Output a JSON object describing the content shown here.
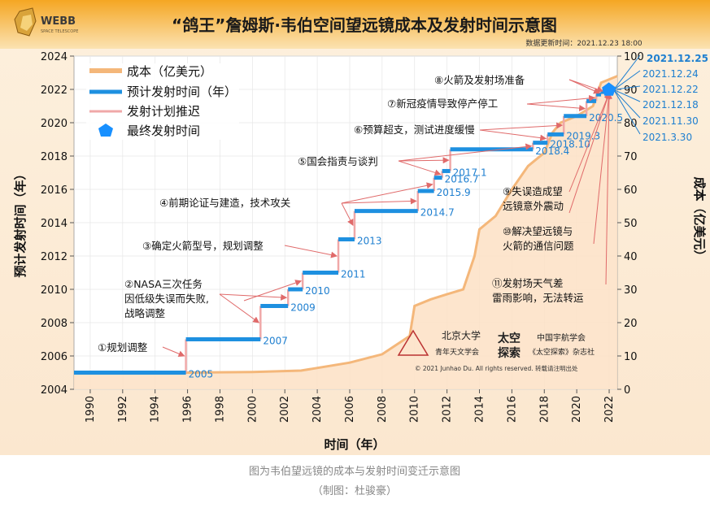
{
  "header": {
    "logo_text": "WEBB",
    "title": "“鸽王”詹姆斯·韦伯空间望远镜成本及发射时间示意图",
    "update_time": "数据更新时间：2021.12.23 18:00"
  },
  "caption": {
    "line1": "图为韦伯望远镜的成本与发射时间变迁示意图",
    "line2": "（制图：杜骏豪）"
  },
  "credits": {
    "org1_line1": "北京大学",
    "org1_line2": "青年天文学会",
    "org2_short_1": "太空",
    "org2_short_2": "探索",
    "org2_line1": "中国宇航学会",
    "org2_line2": "《太空探索》杂志社",
    "copyright": "© 2021 Junhao Du. All rights reserved. 转载请注明出处"
  },
  "legend": [
    {
      "label": "成本（亿美元）",
      "kind": "cost"
    },
    {
      "label": "预计发射时间（年）",
      "kind": "plan"
    },
    {
      "label": "发射计划推迟",
      "kind": "delay"
    },
    {
      "label": "最终发射时间",
      "kind": "final"
    }
  ],
  "colors": {
    "cost_line": "#f4b77a",
    "cost_fill": "#fde5cc",
    "plan": "#1e90e0",
    "delay": "#f0a8a8",
    "arrow": "#e07070",
    "final": "#1890ff",
    "header_bg": "#f2b035"
  },
  "chart_data": {
    "type": "line",
    "xlabel": "时间（年）",
    "ylabel_left": "预计发射时间（年）",
    "ylabel_right": "成本（亿美元）",
    "x_ticks": [
      1990,
      1992,
      1994,
      1996,
      1998,
      2000,
      2002,
      2004,
      2006,
      2008,
      2010,
      2012,
      2014,
      2016,
      2018,
      2020,
      2022
    ],
    "y_left_ticks": [
      2004,
      2006,
      2008,
      2010,
      2012,
      2014,
      2016,
      2018,
      2020,
      2022,
      2024
    ],
    "y_right_ticks": [
      0,
      10,
      20,
      30,
      40,
      50,
      60,
      70,
      80,
      90,
      100
    ],
    "xlim": [
      1989,
      2022.5
    ],
    "ylim_left": [
      2004,
      2024
    ],
    "ylim_right": [
      0,
      100
    ],
    "cost_series": {
      "name": "成本（亿美元）",
      "points": [
        [
          1989,
          5
        ],
        [
          1996,
          5
        ],
        [
          2000,
          5.2
        ],
        [
          2003,
          5.6
        ],
        [
          2006,
          8
        ],
        [
          2008,
          10.5
        ],
        [
          2009.7,
          16
        ],
        [
          2010,
          25
        ],
        [
          2011,
          27
        ],
        [
          2012,
          28.5
        ],
        [
          2013,
          30
        ],
        [
          2013.7,
          40
        ],
        [
          2014,
          48
        ],
        [
          2015,
          52
        ],
        [
          2016,
          60
        ],
        [
          2017,
          67
        ],
        [
          2018,
          71
        ],
        [
          2018.5,
          77
        ],
        [
          2019,
          80
        ],
        [
          2020,
          82
        ],
        [
          2021,
          85
        ],
        [
          2021.5,
          92
        ],
        [
          2022.5,
          94
        ]
      ]
    },
    "plan_segments": [
      {
        "x0": 1989,
        "x1": 1995.9,
        "y": 2005,
        "label": "2005"
      },
      {
        "x0": 1995.9,
        "x1": 2000.5,
        "y": 2007,
        "label": "2007"
      },
      {
        "x0": 2000.5,
        "x1": 2002.2,
        "y": 2009,
        "label": "2009"
      },
      {
        "x0": 2002.2,
        "x1": 2003.1,
        "y": 2010,
        "label": "2010"
      },
      {
        "x0": 2003.1,
        "x1": 2005.3,
        "y": 2011,
        "label": "2011"
      },
      {
        "x0": 2005.3,
        "x1": 2006.3,
        "y": 2013,
        "label": "2013"
      },
      {
        "x0": 2006.3,
        "x1": 2010.2,
        "y": 2014.7,
        "label": "2014.7"
      },
      {
        "x0": 2010.2,
        "x1": 2011.2,
        "y": 2015.9,
        "label": "2015.9"
      },
      {
        "x0": 2011.2,
        "x1": 2011.7,
        "y": 2016.7,
        "label": "2016.7"
      },
      {
        "x0": 2011.7,
        "x1": 2012.2,
        "y": 2017.1,
        "label": "2017.1"
      },
      {
        "x0": 2012.2,
        "x1": 2017.3,
        "y": 2018.4,
        "label": "2018.4"
      },
      {
        "x0": 2017.3,
        "x1": 2018.2,
        "y": 2018.8,
        "label": "2018.10"
      },
      {
        "x0": 2018.2,
        "x1": 2019.2,
        "y": 2019.3,
        "label": "2019.3"
      },
      {
        "x0": 2019.2,
        "x1": 2020.6,
        "y": 2020.4,
        "label": "2020.5"
      },
      {
        "x0": 2020.6,
        "x1": 2021.2,
        "y": 2021.3,
        "label": ""
      },
      {
        "x0": 2021.2,
        "x1": 2021.5,
        "y": 2021.7,
        "label": ""
      },
      {
        "x0": 2021.5,
        "x1": 2021.7,
        "y": 2021.85,
        "label": ""
      },
      {
        "x0": 2021.7,
        "x1": 2021.85,
        "y": 2021.95,
        "label": ""
      },
      {
        "x0": 2021.85,
        "x1": 2021.95,
        "y": 2022,
        "label": ""
      }
    ],
    "final_launch": {
      "x": 2021.98,
      "y": 2021.98
    },
    "right_dates": [
      "2021.12.25",
      "2021.12.24",
      "2021.12.22",
      "2021.12.18",
      "2021.11.30",
      "2021.3.30"
    ],
    "annotations": [
      {
        "text": "①规划调整"
      },
      {
        "text": "②NASA三次任务"
      },
      {
        "text": "因低级失误而失败,"
      },
      {
        "text": "战略调整"
      },
      {
        "text": "③确定火箭型号，规划调整"
      },
      {
        "text": "④前期论证与建造，技术攻关"
      },
      {
        "text": "⑤国会指责与谈判"
      },
      {
        "text": "⑥预算超支，测试进度缓慢"
      },
      {
        "text": "⑦新冠疫情导致停产停工"
      },
      {
        "text": "⑧火箭及发射场准备"
      },
      {
        "text": "⑨失误造成望"
      },
      {
        "text": "远镜意外震动"
      },
      {
        "text": "⑩解决望远镜与"
      },
      {
        "text": "火箭的通信问题"
      },
      {
        "text": "⑪发射场天气差"
      },
      {
        "text": "雷雨影响，无法转运"
      }
    ]
  }
}
